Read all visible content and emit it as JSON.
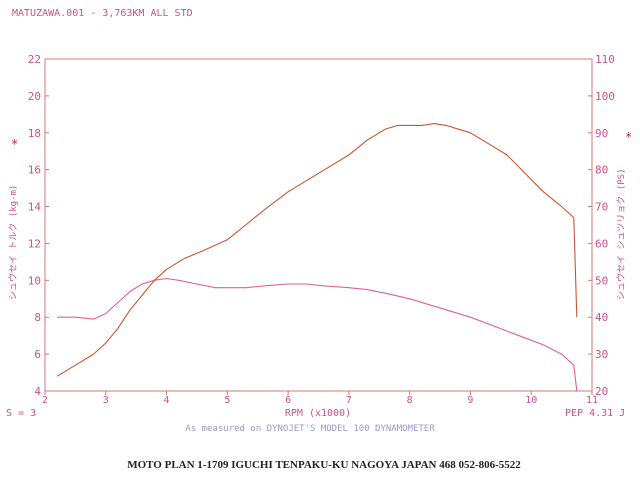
{
  "header": {
    "run_title": "MATUZAWA.001 - 3,763KM ALL STD"
  },
  "footer": {
    "smoothing": "S = 3",
    "pep": "PEP 4.31 J",
    "measured_note": "As measured on DYNOJET'S MODEL 100 DYNAMOMETER",
    "address": "MOTO PLAN 1-1709 IGUCHI TENPAKU-KU NAGOYA JAPAN 468   052-806-5522"
  },
  "chart_data": {
    "type": "line",
    "xlabel": "RPM (x1000)",
    "ylabel_left": "シュウセイ トルク (kg-m)",
    "ylabel_right": "シュウセイ シュツリョク (PS)",
    "xlim": [
      2,
      11
    ],
    "ylim_left": [
      4,
      22
    ],
    "ylim_right": [
      20,
      110
    ],
    "x_ticks": [
      2,
      3,
      4,
      5,
      6,
      7,
      8,
      9,
      10,
      11
    ],
    "y_ticks_left": [
      4,
      6,
      8,
      10,
      12,
      14,
      16,
      18,
      20,
      22
    ],
    "y_ticks_right": [
      20,
      30,
      40,
      50,
      60,
      70,
      80,
      90,
      100,
      110
    ],
    "grid": false,
    "series": [
      {
        "axis": "left",
        "color": "#e0609a",
        "points": [
          [
            2.2,
            8.0
          ],
          [
            2.5,
            8.0
          ],
          [
            2.8,
            7.9
          ],
          [
            3.0,
            8.2
          ],
          [
            3.2,
            8.8
          ],
          [
            3.4,
            9.4
          ],
          [
            3.6,
            9.8
          ],
          [
            3.8,
            10.0
          ],
          [
            4.0,
            10.1
          ],
          [
            4.2,
            10.0
          ],
          [
            4.5,
            9.8
          ],
          [
            4.8,
            9.6
          ],
          [
            5.0,
            9.6
          ],
          [
            5.3,
            9.6
          ],
          [
            5.6,
            9.7
          ],
          [
            6.0,
            9.8
          ],
          [
            6.3,
            9.8
          ],
          [
            6.6,
            9.7
          ],
          [
            7.0,
            9.6
          ],
          [
            7.3,
            9.5
          ],
          [
            7.6,
            9.3
          ],
          [
            8.0,
            9.0
          ],
          [
            8.3,
            8.7
          ],
          [
            8.6,
            8.4
          ],
          [
            9.0,
            8.0
          ],
          [
            9.4,
            7.5
          ],
          [
            9.8,
            7.0
          ],
          [
            10.2,
            6.5
          ],
          [
            10.5,
            6.0
          ],
          [
            10.7,
            5.4
          ],
          [
            10.75,
            4.0
          ]
        ]
      },
      {
        "axis": "right",
        "color": "#cc5533",
        "points": [
          [
            2.2,
            24
          ],
          [
            2.5,
            27
          ],
          [
            2.8,
            30
          ],
          [
            3.0,
            33
          ],
          [
            3.2,
            37
          ],
          [
            3.4,
            42
          ],
          [
            3.6,
            46
          ],
          [
            3.8,
            50
          ],
          [
            4.0,
            53
          ],
          [
            4.3,
            56
          ],
          [
            4.6,
            58
          ],
          [
            5.0,
            61
          ],
          [
            5.3,
            65
          ],
          [
            5.6,
            69
          ],
          [
            6.0,
            74
          ],
          [
            6.3,
            77
          ],
          [
            6.6,
            80
          ],
          [
            7.0,
            84
          ],
          [
            7.3,
            88
          ],
          [
            7.6,
            91
          ],
          [
            7.8,
            92
          ],
          [
            8.0,
            92
          ],
          [
            8.2,
            92
          ],
          [
            8.4,
            92.5
          ],
          [
            8.6,
            92
          ],
          [
            9.0,
            90
          ],
          [
            9.3,
            87
          ],
          [
            9.6,
            84
          ],
          [
            9.9,
            79
          ],
          [
            10.2,
            74
          ],
          [
            10.5,
            70
          ],
          [
            10.7,
            67
          ],
          [
            10.75,
            40
          ]
        ]
      }
    ]
  }
}
